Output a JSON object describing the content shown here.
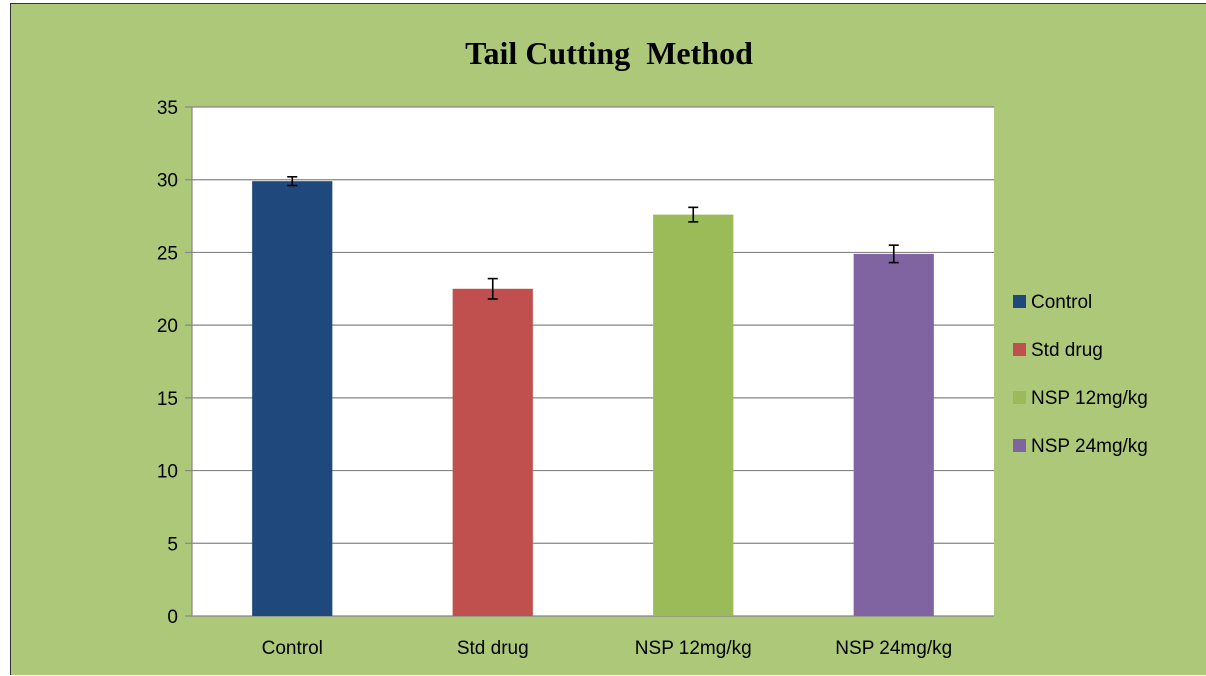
{
  "chart_data": {
    "type": "bar",
    "title": "Tail Cutting  Method",
    "xlabel": "",
    "ylabel": "",
    "categories": [
      "Control",
      "Std drug",
      "NSP 12mg/kg",
      "NSP 24mg/kg"
    ],
    "values": [
      29.9,
      22.5,
      27.6,
      24.9
    ],
    "errors": [
      0.3,
      0.7,
      0.5,
      0.6
    ],
    "colors": [
      "#1f497d",
      "#c0504d",
      "#9bbb59",
      "#8064a2"
    ],
    "ylim": [
      0,
      35
    ],
    "yticks": [
      0,
      5,
      10,
      15,
      20,
      25,
      30,
      35
    ],
    "grid": true,
    "legend": {
      "position": "right",
      "entries": [
        "Control",
        "Std drug",
        "NSP 12mg/kg",
        "NSP 24mg/kg"
      ]
    },
    "background": "#acc878",
    "plot_background": "#ffffff"
  }
}
